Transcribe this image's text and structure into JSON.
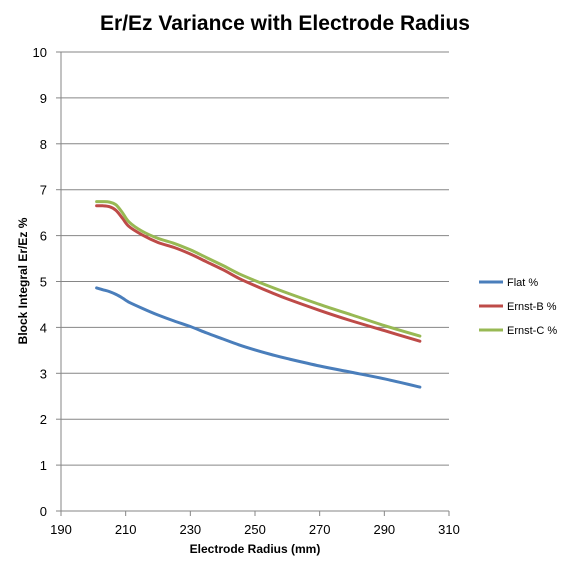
{
  "chart_data": {
    "type": "line",
    "title": "Er/Ez Variance with Electrode Radius",
    "xlabel": "Electrode Radius  (mm)",
    "ylabel": "Block  Integral Er/Ez %",
    "xlim": [
      190,
      310
    ],
    "ylim": [
      0,
      10
    ],
    "xticks": [
      "190",
      "210",
      "230",
      "250",
      "270",
      "290",
      "310"
    ],
    "yticks": [
      "0",
      "1",
      "2",
      "3",
      "4",
      "5",
      "6",
      "7",
      "8",
      "9",
      "10"
    ],
    "grid": "horizontal",
    "legend_position": "right",
    "x": [
      201,
      203,
      205,
      207,
      209,
      211,
      215,
      220,
      225,
      230,
      235,
      240,
      245,
      250,
      255,
      260,
      270,
      280,
      290,
      301
    ],
    "series": [
      {
        "name": "Flat %",
        "color": "#4a7ebb",
        "values": [
          4.86,
          4.82,
          4.78,
          4.72,
          4.64,
          4.55,
          4.42,
          4.27,
          4.14,
          4.02,
          3.88,
          3.75,
          3.62,
          3.51,
          3.41,
          3.32,
          3.16,
          3.02,
          2.88,
          2.7
        ]
      },
      {
        "name": "Ernst-B %",
        "color": "#be4b48",
        "values": [
          6.65,
          6.65,
          6.63,
          6.55,
          6.38,
          6.2,
          6.02,
          5.85,
          5.74,
          5.6,
          5.43,
          5.26,
          5.07,
          4.91,
          4.76,
          4.62,
          4.37,
          4.14,
          3.93,
          3.7
        ]
      },
      {
        "name": "Ernst-C %",
        "color": "#98b954",
        "values": [
          6.74,
          6.74,
          6.73,
          6.67,
          6.5,
          6.3,
          6.1,
          5.94,
          5.83,
          5.69,
          5.52,
          5.35,
          5.17,
          5.02,
          4.88,
          4.75,
          4.5,
          4.27,
          4.04,
          3.81
        ]
      }
    ]
  }
}
